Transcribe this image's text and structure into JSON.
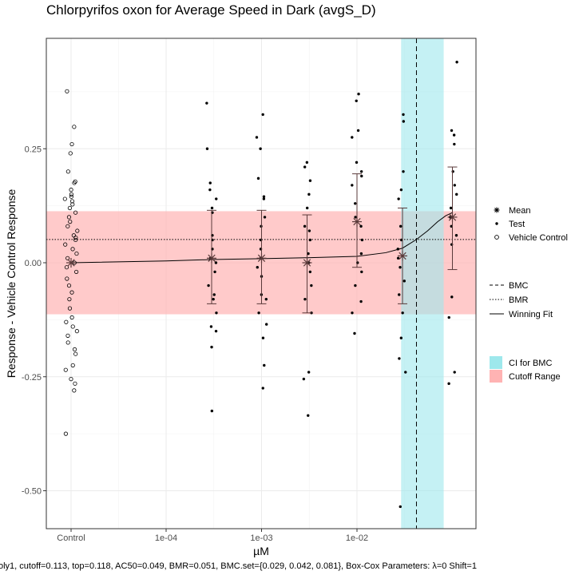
{
  "chart_data": {
    "type": "scatter",
    "title": "Chlorpyrifos oxon for Average Speed in Dark (avgS_D)",
    "xlabel": "µM",
    "ylabel": "Response - Vehicle Control Response",
    "x_scale": "log10",
    "x_ticks": [
      {
        "label": "Control",
        "value": "control"
      },
      {
        "label": "1e-04",
        "value": 0.0001
      },
      {
        "label": "1e-03",
        "value": 0.001
      },
      {
        "label": "1e-02",
        "value": 0.01
      }
    ],
    "y_ticks": [
      {
        "label": "0.25",
        "value": 0.25
      },
      {
        "label": "0.00",
        "value": 0.0
      },
      {
        "label": "-0.25",
        "value": -0.25
      },
      {
        "label": "-0.50",
        "value": -0.5
      }
    ],
    "ylim": [
      -0.58,
      0.49
    ],
    "grid": true,
    "colors": {
      "ci_band": "#9ee8ec",
      "cutoff_band": "#ffb3b3",
      "mean": "#5a3a3a",
      "points": "#000000"
    },
    "cutoff_range": [
      -0.113,
      0.113
    ],
    "bmr": 0.051,
    "bmc": 0.042,
    "bmc_ci": [
      0.029,
      0.081
    ],
    "vehicle_control": [
      0.376,
      0.298,
      0.26,
      0.24,
      0.2,
      0.178,
      0.175,
      0.16,
      0.15,
      0.145,
      0.14,
      0.135,
      0.128,
      0.12,
      0.11,
      0.1,
      0.09,
      0.08,
      0.07,
      0.06,
      0.055,
      0.05,
      0.04,
      0.03,
      0.02,
      0.01,
      0.0,
      -0.01,
      -0.02,
      -0.035,
      -0.05,
      -0.065,
      -0.08,
      -0.1,
      -0.12,
      -0.13,
      -0.14,
      -0.15,
      -0.16,
      -0.175,
      -0.19,
      -0.2,
      -0.225,
      -0.235,
      -0.255,
      -0.265,
      -0.28,
      -0.375
    ],
    "test_groups": [
      {
        "conc": 0.0003,
        "mean": 0.01,
        "ci": [
          -0.09,
          0.115
        ],
        "points": [
          0.35,
          0.25,
          0.175,
          0.16,
          0.14,
          0.12,
          0.11,
          0.06,
          0.05,
          0.03,
          0.01,
          0.0,
          -0.02,
          -0.05,
          -0.07,
          -0.08,
          -0.11,
          -0.14,
          -0.15,
          -0.185,
          -0.325
        ]
      },
      {
        "conc": 0.001,
        "mean": 0.01,
        "ci": [
          -0.09,
          0.115
        ],
        "points": [
          0.325,
          0.275,
          0.25,
          0.185,
          0.145,
          0.14,
          0.1,
          0.08,
          0.05,
          0.03,
          0.01,
          -0.01,
          -0.03,
          -0.07,
          -0.08,
          -0.11,
          -0.135,
          -0.165,
          -0.225,
          -0.275
        ]
      },
      {
        "conc": 0.003,
        "mean": 0.0,
        "ci": [
          -0.11,
          0.105
        ],
        "points": [
          0.22,
          0.21,
          0.18,
          0.15,
          0.12,
          0.08,
          0.07,
          0.05,
          0.02,
          0.0,
          -0.02,
          -0.05,
          -0.08,
          -0.11,
          -0.24,
          -0.255,
          -0.335
        ]
      },
      {
        "conc": 0.01,
        "mean": 0.09,
        "ci": [
          -0.01,
          0.195
        ],
        "points": [
          0.37,
          0.355,
          0.29,
          0.275,
          0.22,
          0.2,
          0.19,
          0.17,
          0.13,
          0.1,
          0.08,
          0.05,
          0.02,
          0.0,
          -0.02,
          -0.05,
          -0.085,
          -0.11,
          -0.155
        ]
      },
      {
        "conc": 0.03,
        "mean": 0.015,
        "ci": [
          -0.09,
          0.12
        ],
        "points": [
          0.325,
          0.31,
          0.2,
          0.16,
          0.14,
          0.08,
          0.05,
          0.03,
          0.01,
          -0.01,
          -0.04,
          -0.07,
          -0.11,
          -0.165,
          -0.21,
          -0.24,
          -0.535
        ]
      },
      {
        "conc": 0.1,
        "mean": 0.1,
        "ci": [
          -0.015,
          0.21
        ],
        "points": [
          0.44,
          0.29,
          0.28,
          0.26,
          0.2,
          0.17,
          0.15,
          0.12,
          0.1,
          0.08,
          0.06,
          0.04,
          -0.075,
          -0.12,
          -0.24,
          -0.265
        ]
      }
    ],
    "winning_fit": {
      "x": [
        3.16e-05,
        0.0001,
        0.0003,
        0.001,
        0.003,
        0.01,
        0.02,
        0.03,
        0.042,
        0.055,
        0.07,
        0.085,
        0.1
      ],
      "y": [
        0.0,
        0.004,
        0.007,
        0.009,
        0.011,
        0.014,
        0.022,
        0.032,
        0.051,
        0.07,
        0.09,
        0.103,
        0.11
      ]
    },
    "legend": {
      "shapes": [
        {
          "symbol": "asterisk",
          "label": "Mean"
        },
        {
          "symbol": "dot",
          "label": "Test"
        },
        {
          "symbol": "circle",
          "label": "Vehicle Control"
        }
      ],
      "lines": [
        {
          "style": "dashed",
          "label": "BMC"
        },
        {
          "style": "dotted",
          "label": "BMR"
        },
        {
          "style": "solid",
          "label": "Winning Fit"
        }
      ],
      "fills": [
        {
          "color": "#9ee8ec",
          "label": "CI for BMC"
        },
        {
          "color": "#ffb3b3",
          "label": "Cutoff Range"
        }
      ]
    },
    "caption": "oly1, cutoff=0.113, top=0.118, AC50=0.049, BMR=0.051, BMC.set={0.029, 0.042, 0.081}, Box-Cox Parameters: λ=0 Shift=1"
  }
}
